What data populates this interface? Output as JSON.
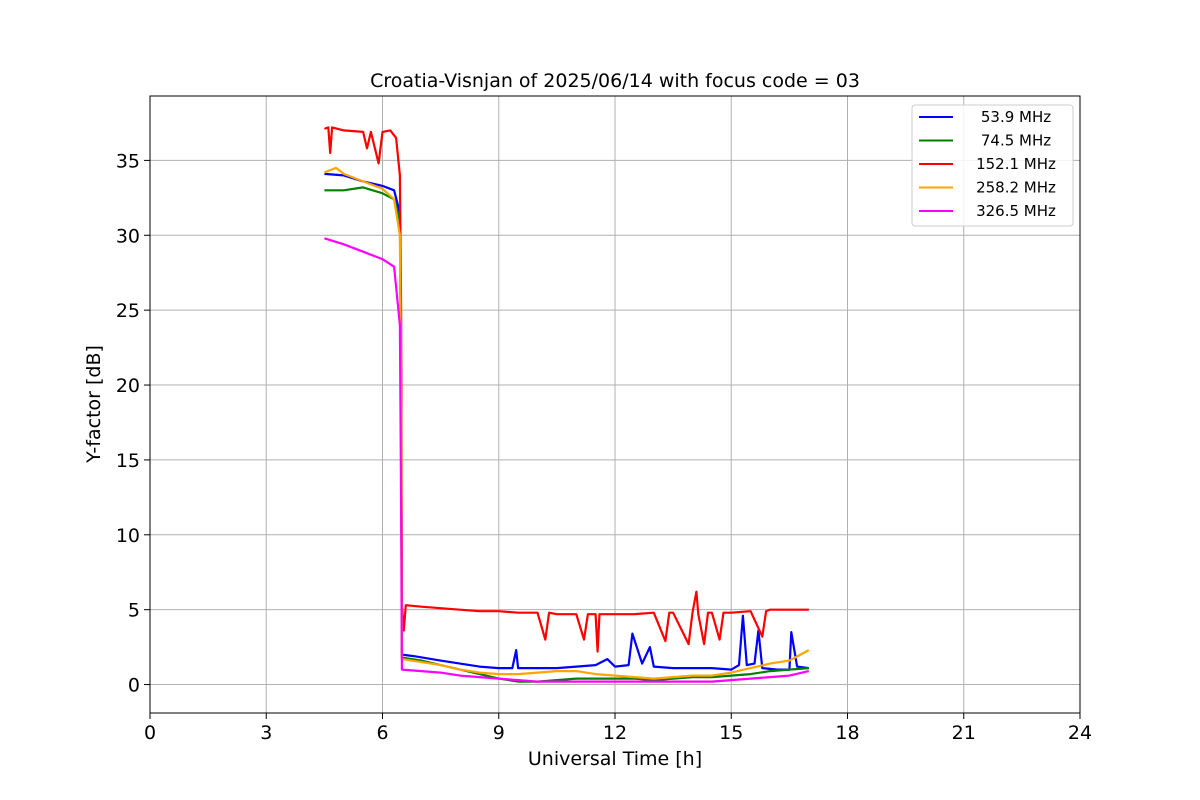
{
  "chart_data": {
    "type": "line",
    "title": "Croatia-Visnjan of 2025/06/14 with focus code = 03",
    "xlabel": "Universal Time [h]",
    "ylabel": "Y-factor [dB]",
    "xlim": [
      0,
      24
    ],
    "ylim": [
      -1.9,
      39.3
    ],
    "xticks": [
      0,
      3,
      6,
      9,
      12,
      15,
      18,
      21,
      24
    ],
    "xtick_labels": [
      "0",
      "3",
      "6",
      "9",
      "12",
      "15",
      "18",
      "21",
      "24"
    ],
    "yticks": [
      0,
      5,
      10,
      15,
      20,
      25,
      30,
      35
    ],
    "ytick_labels": [
      "0",
      "5",
      "10",
      "15",
      "20",
      "25",
      "30",
      "35"
    ],
    "grid": true,
    "legend_position": "top-right",
    "series": [
      {
        "name": "  53.9 MHz",
        "color": "#0000ff",
        "points": [
          [
            4.5,
            34.1
          ],
          [
            5.0,
            34.0
          ],
          [
            5.5,
            33.6
          ],
          [
            6.0,
            33.3
          ],
          [
            6.3,
            33.0
          ],
          [
            6.45,
            31.5
          ],
          [
            6.48,
            20.0
          ],
          [
            6.5,
            2.0
          ],
          [
            6.8,
            1.9
          ],
          [
            7.5,
            1.6
          ],
          [
            8.5,
            1.2
          ],
          [
            9.0,
            1.1
          ],
          [
            9.35,
            1.1
          ],
          [
            9.45,
            2.3
          ],
          [
            9.5,
            1.1
          ],
          [
            10.0,
            1.1
          ],
          [
            10.5,
            1.1
          ],
          [
            11.0,
            1.2
          ],
          [
            11.5,
            1.3
          ],
          [
            11.8,
            1.7
          ],
          [
            12.0,
            1.2
          ],
          [
            12.35,
            1.3
          ],
          [
            12.45,
            3.4
          ],
          [
            12.55,
            2.6
          ],
          [
            12.7,
            1.4
          ],
          [
            12.9,
            2.5
          ],
          [
            13.0,
            1.2
          ],
          [
            13.5,
            1.1
          ],
          [
            14.0,
            1.1
          ],
          [
            14.5,
            1.1
          ],
          [
            15.0,
            1.0
          ],
          [
            15.2,
            1.3
          ],
          [
            15.3,
            4.6
          ],
          [
            15.4,
            1.3
          ],
          [
            15.6,
            1.4
          ],
          [
            15.7,
            3.6
          ],
          [
            15.8,
            1.1
          ],
          [
            16.2,
            1.0
          ],
          [
            16.5,
            1.0
          ],
          [
            16.55,
            3.5
          ],
          [
            16.7,
            1.2
          ],
          [
            17.0,
            1.1
          ]
        ]
      },
      {
        "name": "  74.5 MHz",
        "color": "#008000",
        "points": [
          [
            4.5,
            33.0
          ],
          [
            5.0,
            33.0
          ],
          [
            5.5,
            33.2
          ],
          [
            6.0,
            32.8
          ],
          [
            6.3,
            32.4
          ],
          [
            6.45,
            31.0
          ],
          [
            6.48,
            20.0
          ],
          [
            6.5,
            1.8
          ],
          [
            7.0,
            1.6
          ],
          [
            7.5,
            1.3
          ],
          [
            8.0,
            1.0
          ],
          [
            8.5,
            0.7
          ],
          [
            9.0,
            0.4
          ],
          [
            9.5,
            0.2
          ],
          [
            10.0,
            0.2
          ],
          [
            10.5,
            0.3
          ],
          [
            11.0,
            0.4
          ],
          [
            11.5,
            0.4
          ],
          [
            12.0,
            0.4
          ],
          [
            12.5,
            0.4
          ],
          [
            13.0,
            0.3
          ],
          [
            13.5,
            0.4
          ],
          [
            14.0,
            0.5
          ],
          [
            14.5,
            0.5
          ],
          [
            15.0,
            0.6
          ],
          [
            15.5,
            0.7
          ],
          [
            16.0,
            0.9
          ],
          [
            16.5,
            1.0
          ],
          [
            17.0,
            1.1
          ]
        ]
      },
      {
        "name": "  152.1 MHz",
        "color": "#ff0000",
        "points": [
          [
            4.5,
            37.1
          ],
          [
            4.6,
            37.2
          ],
          [
            4.65,
            35.5
          ],
          [
            4.7,
            37.2
          ],
          [
            5.0,
            37.0
          ],
          [
            5.5,
            36.9
          ],
          [
            5.6,
            35.8
          ],
          [
            5.7,
            36.9
          ],
          [
            5.9,
            34.8
          ],
          [
            6.0,
            36.9
          ],
          [
            6.2,
            37.0
          ],
          [
            6.35,
            36.5
          ],
          [
            6.45,
            34.0
          ],
          [
            6.48,
            25.0
          ],
          [
            6.5,
            5.3
          ],
          [
            6.55,
            3.6
          ],
          [
            6.6,
            5.3
          ],
          [
            7.0,
            5.2
          ],
          [
            7.5,
            5.1
          ],
          [
            8.0,
            5.0
          ],
          [
            8.5,
            4.9
          ],
          [
            9.0,
            4.9
          ],
          [
            9.5,
            4.8
          ],
          [
            10.0,
            4.8
          ],
          [
            10.2,
            3.0
          ],
          [
            10.3,
            4.8
          ],
          [
            10.5,
            4.7
          ],
          [
            11.0,
            4.7
          ],
          [
            11.2,
            3.0
          ],
          [
            11.3,
            4.7
          ],
          [
            11.5,
            4.7
          ],
          [
            11.55,
            2.2
          ],
          [
            11.6,
            4.7
          ],
          [
            12.0,
            4.7
          ],
          [
            12.5,
            4.7
          ],
          [
            13.0,
            4.8
          ],
          [
            13.3,
            2.9
          ],
          [
            13.4,
            4.8
          ],
          [
            13.5,
            4.8
          ],
          [
            13.9,
            2.7
          ],
          [
            14.0,
            4.8
          ],
          [
            14.1,
            6.2
          ],
          [
            14.15,
            4.7
          ],
          [
            14.3,
            2.7
          ],
          [
            14.4,
            4.8
          ],
          [
            14.5,
            4.8
          ],
          [
            14.7,
            3.0
          ],
          [
            14.8,
            4.8
          ],
          [
            15.0,
            4.8
          ],
          [
            15.5,
            4.9
          ],
          [
            15.8,
            3.2
          ],
          [
            15.9,
            4.9
          ],
          [
            16.0,
            5.0
          ],
          [
            16.5,
            5.0
          ],
          [
            17.0,
            5.0
          ]
        ]
      },
      {
        "name": "  258.2 MHz",
        "color": "#ffa500",
        "points": [
          [
            4.5,
            34.2
          ],
          [
            4.8,
            34.5
          ],
          [
            5.0,
            34.1
          ],
          [
            5.5,
            33.6
          ],
          [
            6.0,
            33.1
          ],
          [
            6.3,
            32.4
          ],
          [
            6.45,
            30.0
          ],
          [
            6.48,
            18.0
          ],
          [
            6.5,
            1.7
          ],
          [
            7.0,
            1.5
          ],
          [
            7.5,
            1.3
          ],
          [
            8.0,
            1.0
          ],
          [
            8.5,
            0.8
          ],
          [
            9.0,
            0.7
          ],
          [
            9.5,
            0.7
          ],
          [
            10.0,
            0.8
          ],
          [
            10.5,
            0.9
          ],
          [
            11.0,
            0.9
          ],
          [
            11.5,
            0.7
          ],
          [
            12.0,
            0.6
          ],
          [
            12.5,
            0.5
          ],
          [
            13.0,
            0.4
          ],
          [
            13.5,
            0.5
          ],
          [
            14.0,
            0.6
          ],
          [
            14.5,
            0.6
          ],
          [
            15.0,
            0.8
          ],
          [
            15.5,
            1.1
          ],
          [
            16.0,
            1.4
          ],
          [
            16.5,
            1.6
          ],
          [
            17.0,
            2.3
          ]
        ]
      },
      {
        "name": "  326.5 MHz",
        "color": "#ff00ff",
        "points": [
          [
            4.5,
            29.8
          ],
          [
            5.0,
            29.4
          ],
          [
            5.5,
            28.9
          ],
          [
            6.0,
            28.4
          ],
          [
            6.3,
            27.9
          ],
          [
            6.45,
            24.0
          ],
          [
            6.48,
            12.0
          ],
          [
            6.5,
            1.0
          ],
          [
            7.0,
            0.9
          ],
          [
            7.5,
            0.8
          ],
          [
            8.0,
            0.6
          ],
          [
            8.5,
            0.5
          ],
          [
            9.0,
            0.4
          ],
          [
            9.5,
            0.3
          ],
          [
            10.0,
            0.2
          ],
          [
            10.5,
            0.2
          ],
          [
            11.0,
            0.2
          ],
          [
            11.5,
            0.2
          ],
          [
            12.0,
            0.2
          ],
          [
            12.5,
            0.2
          ],
          [
            13.0,
            0.2
          ],
          [
            13.5,
            0.2
          ],
          [
            14.0,
            0.2
          ],
          [
            14.5,
            0.2
          ],
          [
            15.0,
            0.3
          ],
          [
            15.5,
            0.4
          ],
          [
            16.0,
            0.5
          ],
          [
            16.5,
            0.6
          ],
          [
            17.0,
            0.9
          ]
        ]
      }
    ]
  }
}
